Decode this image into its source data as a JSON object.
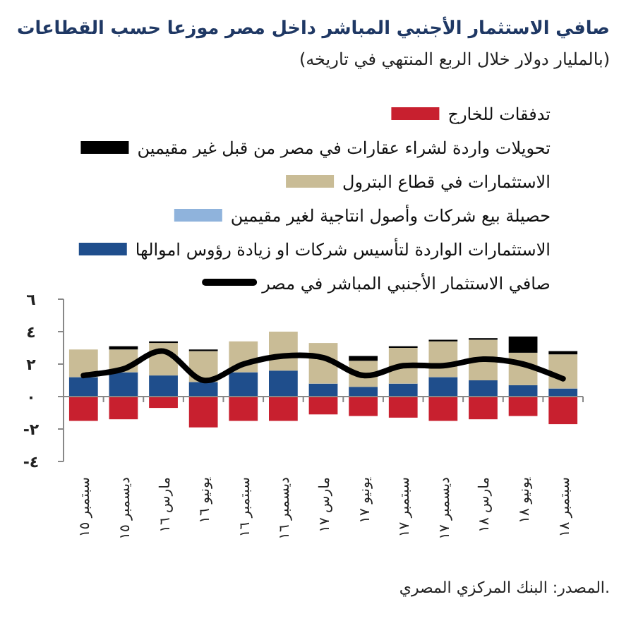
{
  "chart_data": {
    "type": "bar",
    "stacked": true,
    "title": "صافي الاستثمار الأجنبي المباشر داخل مصر موزعا حسب القطاعات",
    "subtitle": "(بالمليار دولار خلال الربع المنتهي في تاريخه)",
    "categories": [
      "سبتمبر ١٥",
      "ديسمبر ١٥",
      "مارس ١٦",
      "يونيو ١٦",
      "سبتمبر ١٦",
      "ديسمبر ١٦",
      "مارس ١٧",
      "يونيو ١٧",
      "سبتمبر ١٧",
      "ديسمبر ١٧",
      "مارس ١٨",
      "يونيو ١٨",
      "سبتمبر ١٨"
    ],
    "series": [
      {
        "name": "الاستثمارات الواردة لتأسيس شركات او زيادة رؤوس اموالها",
        "color": "#1f4e8c",
        "values": [
          1.2,
          1.5,
          1.3,
          0.9,
          1.5,
          1.6,
          0.8,
          0.6,
          0.8,
          1.2,
          1.0,
          0.7,
          0.5
        ]
      },
      {
        "name": "حصيلة بيع شركات وأصول انتاجية لغير مقيمين",
        "color": "#8fb3dc",
        "values": [
          0,
          0,
          0,
          0,
          0,
          0,
          0,
          0,
          0,
          0,
          0,
          0,
          0
        ]
      },
      {
        "name": "الاستثمارات في قطاع البترول",
        "color": "#c9bc96",
        "values": [
          1.7,
          1.4,
          2.0,
          1.9,
          1.9,
          2.4,
          2.5,
          1.6,
          2.2,
          2.2,
          2.5,
          2.0,
          2.1
        ]
      },
      {
        "name": "تحويلات واردة لشراء عقارات في مصر من قبل غير مقيمين",
        "color": "#000000",
        "values": [
          0,
          0.2,
          0.1,
          0.1,
          0,
          0,
          0,
          0.3,
          0.1,
          0.1,
          0.1,
          1.0,
          0.2
        ]
      },
      {
        "name": "تدفقات للخارج",
        "color": "#c8202f",
        "values": [
          -1.5,
          -1.4,
          -0.7,
          -1.9,
          -1.5,
          -1.5,
          -1.1,
          -1.2,
          -1.3,
          -1.5,
          -1.4,
          -1.2,
          -1.7
        ]
      },
      {
        "name": "صافي الاستثمار الأجنبي المباشر في مصر",
        "type": "line",
        "color": "#000000",
        "values": [
          1.3,
          1.7,
          2.8,
          1.0,
          2.0,
          2.5,
          2.4,
          1.3,
          1.9,
          1.9,
          2.3,
          2.0,
          1.1
        ]
      }
    ],
    "ylim": [
      -4,
      6
    ],
    "yticks": [
      {
        "value": -4,
        "label": "-٤"
      },
      {
        "value": -2,
        "label": "-٢"
      },
      {
        "value": 0,
        "label": "٠"
      },
      {
        "value": 2,
        "label": "٢"
      },
      {
        "value": 4,
        "label": "٤"
      },
      {
        "value": 6,
        "label": "٦"
      }
    ],
    "legend": "top",
    "annotations": [
      "المصدر: البنك المركزي المصري."
    ]
  }
}
